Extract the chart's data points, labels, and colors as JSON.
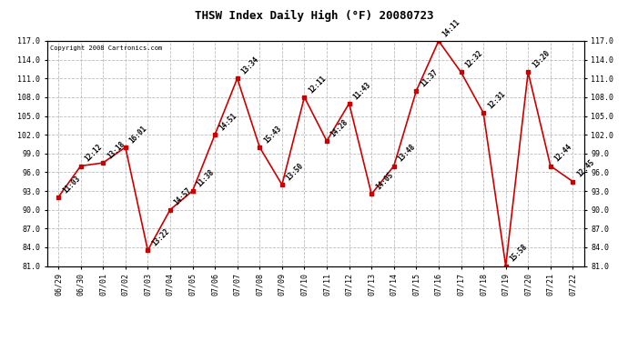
{
  "title": "THSW Index Daily High (°F) 20080723",
  "copyright": "Copyright 2008 Cartronics.com",
  "x_labels": [
    "06/29",
    "06/30",
    "07/01",
    "07/02",
    "07/03",
    "07/04",
    "07/05",
    "07/06",
    "07/07",
    "07/08",
    "07/09",
    "07/10",
    "07/11",
    "07/12",
    "07/13",
    "07/14",
    "07/15",
    "07/16",
    "07/17",
    "07/18",
    "07/19",
    "07/20",
    "07/21",
    "07/22"
  ],
  "y_values": [
    92.0,
    97.0,
    97.5,
    100.0,
    83.5,
    90.0,
    93.0,
    102.0,
    111.0,
    100.0,
    94.0,
    108.0,
    101.0,
    107.0,
    92.5,
    97.0,
    109.0,
    117.0,
    112.0,
    105.5,
    81.0,
    112.0,
    97.0,
    94.5
  ],
  "time_labels": [
    "11:03",
    "12:12",
    "13:18",
    "16:01",
    "13:22",
    "14:57",
    "11:38",
    "14:51",
    "13:34",
    "15:43",
    "13:50",
    "12:11",
    "14:28",
    "11:43",
    "14:05",
    "13:48",
    "11:37",
    "14:11",
    "12:32",
    "12:31",
    "15:58",
    "13:20",
    "12:44",
    "12:45"
  ],
  "ylim": [
    81.0,
    117.0
  ],
  "yticks": [
    81.0,
    84.0,
    87.0,
    90.0,
    93.0,
    96.0,
    99.0,
    102.0,
    105.0,
    108.0,
    111.0,
    114.0,
    117.0
  ],
  "line_color": "#cc0000",
  "marker_color": "#cc0000",
  "bg_color": "#ffffff",
  "grid_color": "#bbbbbb",
  "title_fontsize": 9,
  "tick_fontsize": 6,
  "annotation_fontsize": 5.5
}
